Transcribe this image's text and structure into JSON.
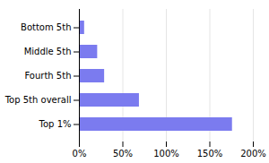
{
  "chart_data": {
    "type": "bar",
    "orientation": "horizontal",
    "categories": [
      "Top 1%",
      "Top 5th overall",
      "Fourth 5th",
      "Middle 5th",
      "Bottom 5th"
    ],
    "values": [
      176,
      69,
      29,
      21,
      6
    ],
    "color": "#7b7bef",
    "xlim": [
      0,
      200
    ],
    "xticks": [
      {
        "value": 0,
        "label": "0%"
      },
      {
        "value": 50,
        "label": "50%"
      },
      {
        "value": 100,
        "label": "100%"
      },
      {
        "value": 150,
        "label": "150%"
      },
      {
        "value": 200,
        "label": "200%"
      }
    ],
    "grid": true
  }
}
